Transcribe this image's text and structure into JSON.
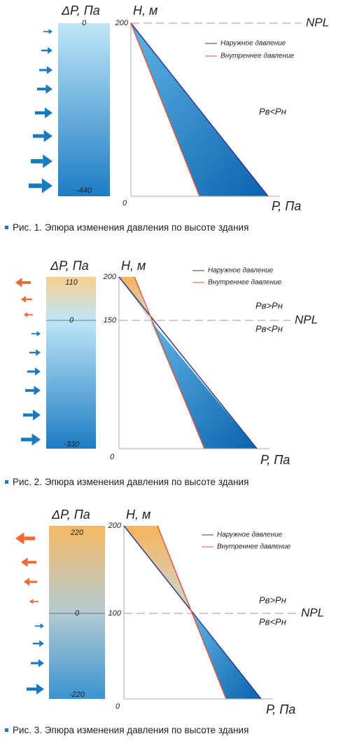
{
  "figures": [
    {
      "dp_label": "ΔP, Па",
      "h_label": "Н, м",
      "dp_top": "0",
      "dp_bottom": "-440",
      "h_top": "200",
      "origin": "0",
      "npl": "NPL",
      "x_label": "Р, Па",
      "legend": [
        "Наружное давление",
        "Внутреннее давление"
      ],
      "relations": [
        "Рв<Рн"
      ],
      "caption": "Рис. 1. Эпюра изменения давления по высоте здания"
    },
    {
      "dp_label": "ΔP, Па",
      "h_label": "Н, м",
      "dp_top": "110",
      "dp_mid": "0",
      "dp_bottom": "-330",
      "h_top": "200",
      "h_mid": "150",
      "origin": "0",
      "npl": "NPL",
      "x_label": "Р, Па",
      "legend": [
        "Наружное давление",
        "Внутреннее давление"
      ],
      "relations": [
        "Рв>Рн",
        "Рв<Рн"
      ],
      "caption": "Рис. 2. Эпюра изменения давления по высоте здания"
    },
    {
      "dp_label": "ΔP, Па",
      "h_label": "Н, м",
      "dp_top": "220",
      "dp_mid": "0",
      "dp_bottom": "-220",
      "h_top": "200",
      "h_mid": "100",
      "origin": "0",
      "npl": "NPL",
      "x_label": "Р, Па",
      "legend": [
        "Наружное давление",
        "Внутреннее давление"
      ],
      "relations": [
        "Рв>Рн",
        "Рв<Рн"
      ],
      "caption": "Рис. 3. Эпюра изменения давления по высоте здания"
    }
  ]
}
